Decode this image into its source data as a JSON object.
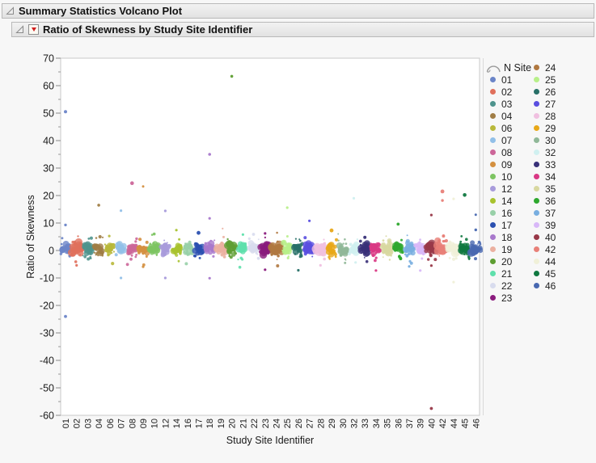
{
  "window": {
    "background": "#F7F7F7"
  },
  "outline": {
    "level1_title": "Summary Statistics Volcano Plot",
    "level2_title": "Ratio of Skewness by Study Site Identifier"
  },
  "icons": {
    "disclosure": "open-outline-triangle",
    "red_triangle_menu": "red-triangle-down",
    "legend_header_icon": "arc-curve"
  },
  "chart_data": {
    "type": "scatter",
    "title": "Ratio of Skewness by Study Site Identifier",
    "xlabel": "Study Site Identifier",
    "ylabel": "Ratio of Skewness",
    "ylim": [
      -60,
      70
    ],
    "y_ticks": [
      70,
      60,
      50,
      40,
      30,
      20,
      10,
      0,
      -10,
      -20,
      -30,
      -40,
      -50,
      -60
    ],
    "y_minor_ticks": [
      65,
      55,
      45,
      35,
      25,
      15,
      5,
      -5,
      -15,
      -25,
      -35,
      -45,
      -55
    ],
    "grid": false,
    "legend_position": "right",
    "legend_title": "N Site",
    "categories": [
      "01",
      "02",
      "03",
      "04",
      "06",
      "07",
      "08",
      "09",
      "10",
      "12",
      "14",
      "16",
      "17",
      "18",
      "19",
      "20",
      "21",
      "22",
      "23",
      "24",
      "25",
      "26",
      "27",
      "28",
      "29",
      "30",
      "32",
      "33",
      "34",
      "35",
      "36",
      "37",
      "39",
      "40",
      "42",
      "44",
      "45",
      "46"
    ],
    "sites": [
      {
        "id": "01",
        "color": "#6B85C8"
      },
      {
        "id": "02",
        "color": "#E0705C",
        "s": 1.2
      },
      {
        "id": "03",
        "color": "#4E938D"
      },
      {
        "id": "04",
        "color": "#A07D45"
      },
      {
        "id": "06",
        "color": "#B8B83A"
      },
      {
        "id": "07",
        "color": "#92C0E8"
      },
      {
        "id": "08",
        "color": "#CC6699"
      },
      {
        "id": "09",
        "color": "#D49040"
      },
      {
        "id": "10",
        "color": "#7DC462"
      },
      {
        "id": "12",
        "color": "#A89BDB"
      },
      {
        "id": "14",
        "color": "#A8C22E"
      },
      {
        "id": "16",
        "color": "#98D0A8"
      },
      {
        "id": "17",
        "color": "#2B50B0"
      },
      {
        "id": "18",
        "color": "#A878CC"
      },
      {
        "id": "19",
        "color": "#EBB0A0",
        "s": 1.15
      },
      {
        "id": "20",
        "color": "#5E9E32",
        "s": 1.1
      },
      {
        "id": "21",
        "color": "#5FE0AC"
      },
      {
        "id": "22",
        "color": "#D8DCEE"
      },
      {
        "id": "23",
        "color": "#8A1B7D",
        "s": 1.3
      },
      {
        "id": "24",
        "color": "#B07840",
        "s": 1.35
      },
      {
        "id": "25",
        "color": "#B8F08A"
      },
      {
        "id": "26",
        "color": "#287068"
      },
      {
        "id": "27",
        "color": "#5A4FE0",
        "s": 1.15
      },
      {
        "id": "28",
        "color": "#F0C0E0",
        "s": 1.25
      },
      {
        "id": "29",
        "color": "#E8A818"
      },
      {
        "id": "30",
        "color": "#90B898"
      },
      {
        "id": "32",
        "color": "#D0F0F0"
      },
      {
        "id": "33",
        "color": "#383078",
        "s": 1.1
      },
      {
        "id": "34",
        "color": "#D93884",
        "s": 1.15
      },
      {
        "id": "35",
        "color": "#D8D8A0",
        "s": 1.1
      },
      {
        "id": "36",
        "color": "#2EA82E"
      },
      {
        "id": "37",
        "color": "#78AEE0"
      },
      {
        "id": "39",
        "color": "#D8B8F8",
        "s": 1.2
      },
      {
        "id": "40",
        "color": "#983848",
        "s": 1.3
      },
      {
        "id": "42",
        "color": "#E88078",
        "s": 1.3
      },
      {
        "id": "44",
        "color": "#F0F0D8",
        "s": 1.3
      },
      {
        "id": "45",
        "color": "#107840"
      },
      {
        "id": "46",
        "color": "#4868B0",
        "s": 1.2
      }
    ],
    "band": {
      "mean": 0.7,
      "sd": 0.9,
      "halo_sd": 2.1,
      "big_n": 12,
      "small_n": 9,
      "description": "each site shows a dense cluster of ratio-of-skewness values near 0 (approx -2.5 to +4) with a halo of smaller points to about +/-7"
    },
    "outliers": [
      {
        "site": "01",
        "y": 50.5,
        "r": 2.0
      },
      {
        "site": "01",
        "y": 9.3,
        "r": 1.7
      },
      {
        "site": "01",
        "y": -24.0,
        "r": 1.9
      },
      {
        "site": "02",
        "y": -5.4
      },
      {
        "site": "04",
        "y": 16.5,
        "r": 1.8
      },
      {
        "site": "07",
        "y": 14.5
      },
      {
        "site": "07",
        "y": -10.0
      },
      {
        "site": "08",
        "y": 24.5,
        "r": 2.3
      },
      {
        "site": "09",
        "y": 23.3,
        "r": 1.5
      },
      {
        "site": "09",
        "y": -5.9
      },
      {
        "site": "10",
        "y": 6.0,
        "r": 1.8
      },
      {
        "site": "12",
        "y": 14.4
      },
      {
        "site": "12",
        "y": -10.0
      },
      {
        "site": "14",
        "y": 7.4
      },
      {
        "site": "17",
        "y": 6.4,
        "r": 2.4
      },
      {
        "site": "18",
        "y": 35.0,
        "r": 1.8
      },
      {
        "site": "18",
        "y": 11.7
      },
      {
        "site": "18",
        "y": -10.1
      },
      {
        "site": "20",
        "y": 63.4,
        "r": 1.8
      },
      {
        "site": "21",
        "y": 5.8
      },
      {
        "site": "23",
        "y": 6.2
      },
      {
        "site": "23",
        "y": -7.0
      },
      {
        "site": "25",
        "y": 15.6
      },
      {
        "site": "26",
        "y": -7.2
      },
      {
        "site": "27",
        "y": 10.8
      },
      {
        "site": "28",
        "y": -5.4
      },
      {
        "site": "29",
        "y": 7.3,
        "r": 2.4
      },
      {
        "site": "32",
        "y": 19.0
      },
      {
        "site": "33",
        "y": 4.8,
        "r": 2.0
      },
      {
        "site": "34",
        "y": -7.3
      },
      {
        "site": "36",
        "y": 9.6,
        "r": 1.9
      },
      {
        "site": "37",
        "y": -5.8
      },
      {
        "site": "39",
        "y": -7.3
      },
      {
        "site": "40",
        "y": 12.9
      },
      {
        "site": "40",
        "y": -5.5
      },
      {
        "site": "40",
        "y": -57.5,
        "r": 1.9
      },
      {
        "site": "42",
        "y": 21.5,
        "r": 2.4
      },
      {
        "site": "42",
        "y": 18.2,
        "r": 1.7
      },
      {
        "site": "44",
        "y": 18.8
      },
      {
        "site": "44",
        "y": -11.5
      },
      {
        "site": "45",
        "y": 20.2,
        "r": 2.3
      },
      {
        "site": "46",
        "y": 13.0,
        "r": 1.5
      },
      {
        "site": "46",
        "y": 7.5,
        "r": 1.7
      }
    ]
  }
}
